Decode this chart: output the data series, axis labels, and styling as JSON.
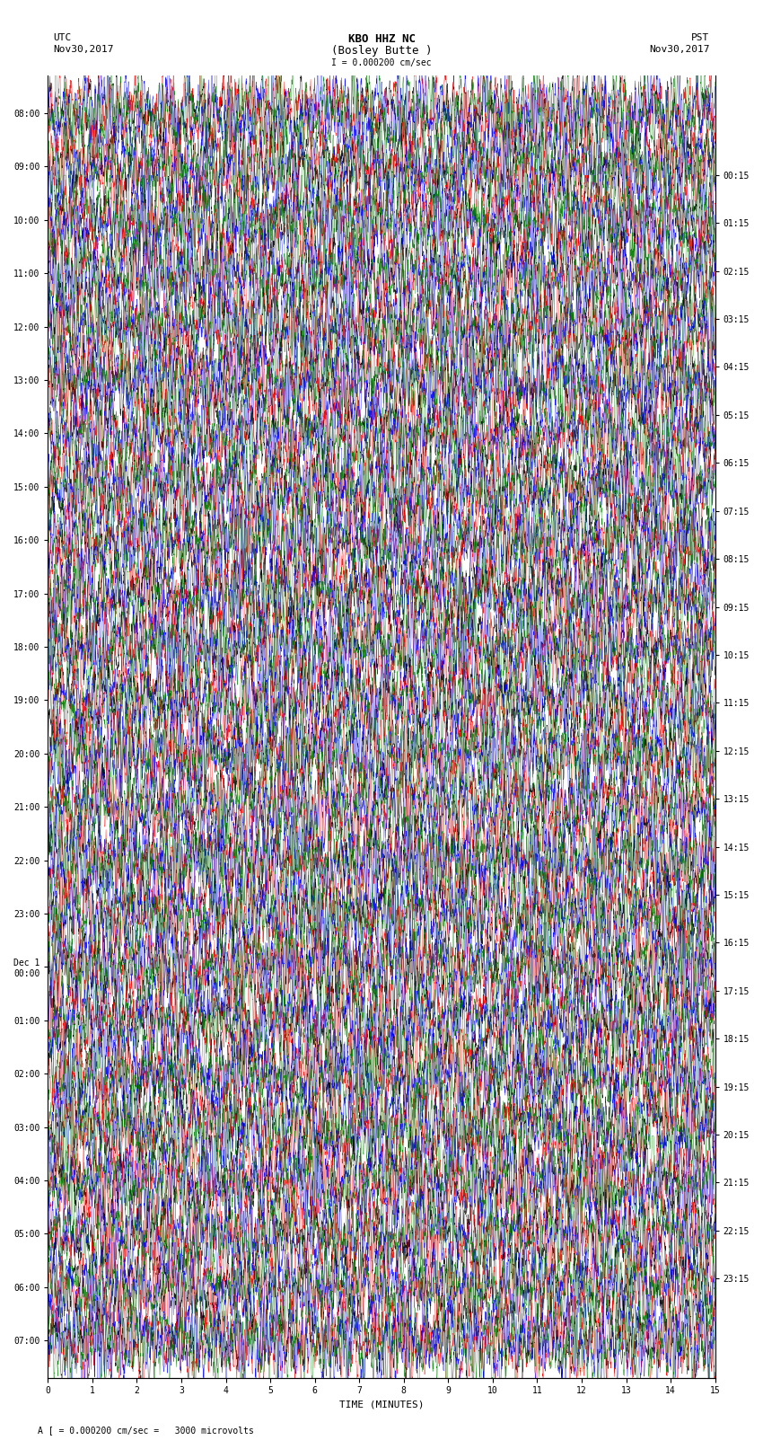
{
  "title_line1": "KBO HHZ NC",
  "title_line2": "(Bosley Butte )",
  "scale_text": "I = 0.000200 cm/sec",
  "left_header": "UTC",
  "left_date": "Nov30,2017",
  "right_header": "PST",
  "right_date": "Nov30,2017",
  "footer_text": "A [ = 0.000200 cm/sec =   3000 microvolts",
  "xlabel": "TIME (MINUTES)",
  "utc_times": [
    "08:00",
    "09:00",
    "10:00",
    "11:00",
    "12:00",
    "13:00",
    "14:00",
    "15:00",
    "16:00",
    "17:00",
    "18:00",
    "19:00",
    "20:00",
    "21:00",
    "22:00",
    "23:00",
    "Dec 1\n00:00",
    "01:00",
    "02:00",
    "03:00",
    "04:00",
    "05:00",
    "06:00",
    "07:00"
  ],
  "pst_times": [
    "00:15",
    "01:15",
    "02:15",
    "03:15",
    "04:15",
    "05:15",
    "06:15",
    "07:15",
    "08:15",
    "09:15",
    "10:15",
    "11:15",
    "12:15",
    "13:15",
    "14:15",
    "15:15",
    "16:15",
    "17:15",
    "18:15",
    "19:15",
    "20:15",
    "21:15",
    "22:15",
    "23:15"
  ],
  "n_rows": 24,
  "n_minutes": 15,
  "colors": [
    "black",
    "red",
    "blue",
    "green"
  ],
  "amplitude": 0.38,
  "bg_color": "white",
  "line_width": 0.3,
  "figsize": [
    8.5,
    16.13
  ],
  "dpi": 100,
  "xmin": 0,
  "xmax": 15
}
